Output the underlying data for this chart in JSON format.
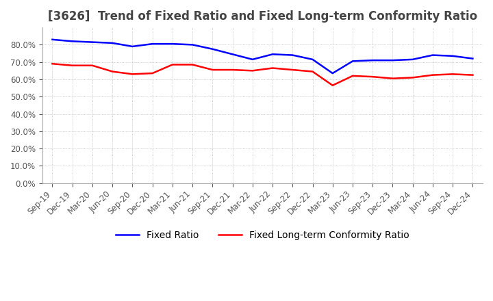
{
  "title": "[3626]  Trend of Fixed Ratio and Fixed Long-term Conformity Ratio",
  "x_labels": [
    "Sep-19",
    "Dec-19",
    "Mar-20",
    "Jun-20",
    "Sep-20",
    "Dec-20",
    "Mar-21",
    "Jun-21",
    "Sep-21",
    "Dec-21",
    "Mar-22",
    "Jun-22",
    "Sep-22",
    "Dec-22",
    "Mar-23",
    "Jun-23",
    "Sep-23",
    "Dec-23",
    "Mar-24",
    "Jun-24",
    "Sep-24",
    "Dec-24"
  ],
  "fixed_ratio": [
    83.0,
    82.0,
    81.5,
    81.0,
    79.0,
    80.5,
    80.5,
    80.0,
    77.5,
    74.5,
    71.5,
    74.5,
    74.0,
    71.5,
    63.5,
    70.5,
    71.0,
    71.0,
    71.5,
    74.0,
    73.5,
    72.0
  ],
  "fixed_lt_ratio": [
    69.0,
    68.0,
    68.0,
    64.5,
    63.0,
    63.5,
    68.5,
    68.5,
    65.5,
    65.5,
    65.0,
    66.5,
    65.5,
    64.5,
    56.5,
    62.0,
    61.5,
    60.5,
    61.0,
    62.5,
    63.0,
    62.5
  ],
  "fixed_ratio_color": "#0000FF",
  "fixed_lt_ratio_color": "#FF0000",
  "ylim": [
    0,
    90
  ],
  "yticks": [
    0,
    10,
    20,
    30,
    40,
    50,
    60,
    70,
    80
  ],
  "background_color": "#FFFFFF",
  "grid_color": "#AAAAAA",
  "title_fontsize": 12,
  "axis_fontsize": 8.5,
  "legend_fontsize": 10
}
